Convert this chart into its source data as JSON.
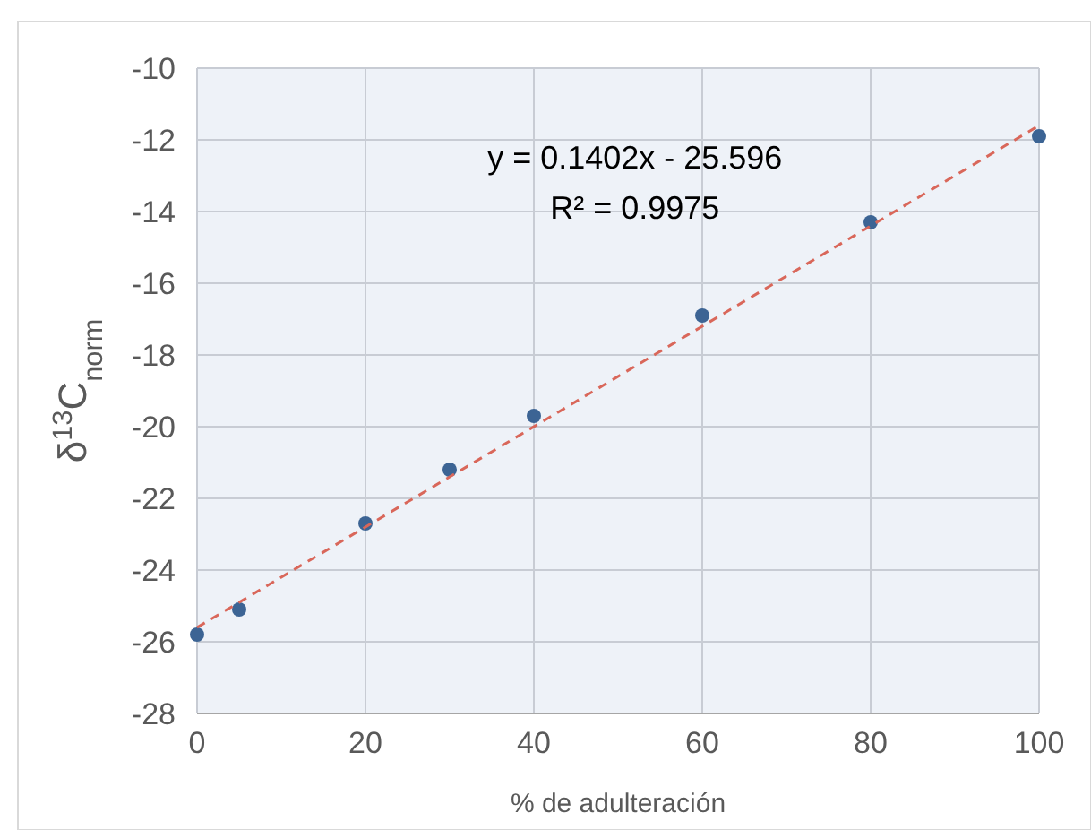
{
  "chart_data": {
    "type": "scatter",
    "xlabel": "% de adulteración",
    "ylabel": "δ$^{13}$C$_{norm}$",
    "xlim": [
      0,
      100
    ],
    "xticks": [
      0,
      20,
      40,
      60,
      80,
      100
    ],
    "ylim": [
      -28,
      -10
    ],
    "yticks": [
      -28,
      -26,
      -24,
      -22,
      -20,
      -18,
      -16,
      -14,
      -12,
      -10
    ],
    "grid": true,
    "marker": "circle",
    "series": [
      {
        "color": "#3c6494",
        "x": [
          0,
          5,
          20,
          30,
          40,
          60,
          80,
          100
        ],
        "values": [
          -25.8,
          -25.1,
          -22.7,
          -21.2,
          -19.7,
          -16.9,
          -14.3,
          -11.9
        ]
      },
      {
        "type": "line",
        "color": "#d9675a",
        "line_style": "dashed",
        "marker": "none",
        "x": [
          0,
          100
        ],
        "values": [
          -25.6,
          -11.6
        ]
      }
    ],
    "annotations": [
      "y = 0.1402x - 25.596",
      "R² = 0.9975"
    ]
  }
}
